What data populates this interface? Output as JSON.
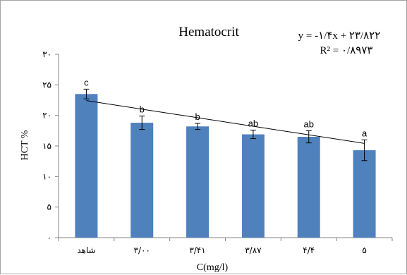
{
  "chart_data": {
    "type": "bar",
    "title": "Hematocrit",
    "equation": "y = -۱/۴x + ۲۳/۸۲۲",
    "r_squared": "R² = ۰/۸۹۷۳",
    "xlabel": "C(mg/l)",
    "ylabel": "HCT %",
    "categories": [
      "شاهد",
      "۳/۰۰",
      "۳/۴۱",
      "۳/۸۷",
      "۴/۴",
      "۵"
    ],
    "values": [
      23.5,
      18.8,
      18.2,
      16.9,
      16.5,
      14.3
    ],
    "errors": [
      0.8,
      1.1,
      0.5,
      0.7,
      1.0,
      1.7
    ],
    "significance_letters": [
      "c",
      "b",
      "b",
      "ab",
      "ab",
      "a"
    ],
    "ylim": [
      0,
      30
    ],
    "yticks": [
      0,
      5,
      10,
      15,
      20,
      25,
      30
    ],
    "ytick_labels": [
      "۰",
      "۵",
      "۱۰",
      "۱۵",
      "۲۰",
      "۲۵",
      "۳۰"
    ],
    "trendline": {
      "slope": -1.4,
      "intercept": 23.822
    },
    "bar_color": "#4f81bd",
    "grid": false,
    "legend": "none"
  }
}
